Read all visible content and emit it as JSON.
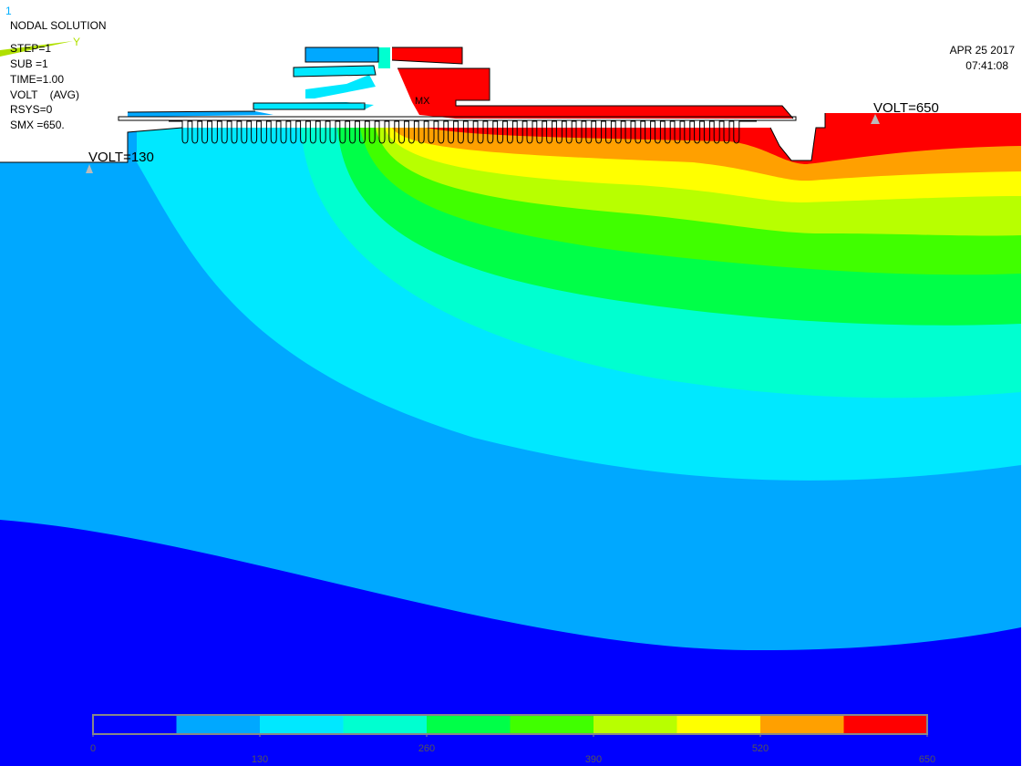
{
  "window_number": "1",
  "info": [
    "NODAL SOLUTION",
    "STEP=1",
    "SUB =1",
    "TIME=1.00",
    "VOLT    (AVG)",
    "RSYS=0",
    "SMX =650."
  ],
  "date": "APR 25 2017",
  "time": "07:41:08",
  "triad_label": "Y",
  "annotations": [
    "VOLT=130",
    "VOLT=650"
  ],
  "max_label": "MX",
  "legend": {
    "colors": [
      "#0000ff",
      "#00a8ff",
      "#00e8ff",
      "#00ffd0",
      "#00ff48",
      "#40ff00",
      "#b8ff00",
      "#ffff00",
      "#ffa000",
      "#ff0000"
    ],
    "ticks": [
      0,
      130,
      260,
      390,
      520,
      650
    ]
  }
}
